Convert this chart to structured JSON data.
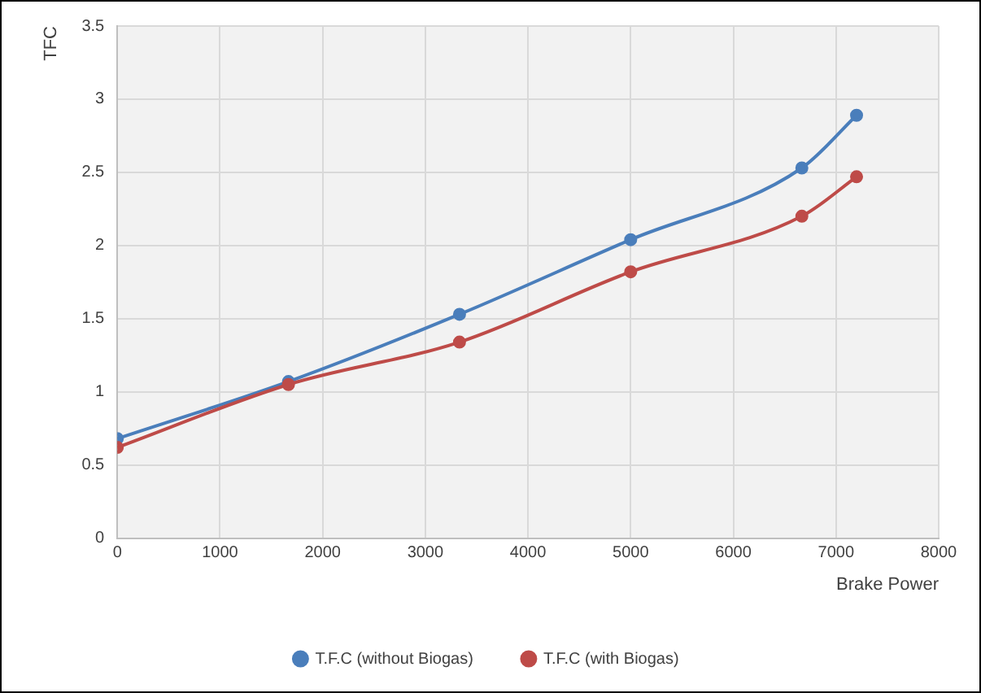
{
  "chart_data": {
    "type": "line",
    "xlabel": "Brake Power",
    "ylabel": "TFC",
    "x": [
      0,
      1667,
      3333,
      5000,
      6667,
      7200
    ],
    "series": [
      {
        "name": "T.F.C (without Biogas)",
        "color": "#4a7ebb",
        "values": [
          0.68,
          1.07,
          1.53,
          2.04,
          2.53,
          2.89
        ]
      },
      {
        "name": "T.F.C (with Biogas)",
        "color": "#be4b48",
        "values": [
          0.62,
          1.05,
          1.34,
          1.82,
          2.2,
          2.47
        ]
      }
    ],
    "xlim": [
      0,
      8000
    ],
    "xticks": [
      0,
      1000,
      2000,
      3000,
      4000,
      5000,
      6000,
      7000,
      8000
    ],
    "ylim": [
      0,
      3.5
    ],
    "yticks": [
      0,
      0.5,
      1,
      1.5,
      2,
      2.5,
      3,
      3.5
    ],
    "grid": true,
    "legend": "bottom",
    "marker": "circle",
    "line_style": "solid"
  }
}
